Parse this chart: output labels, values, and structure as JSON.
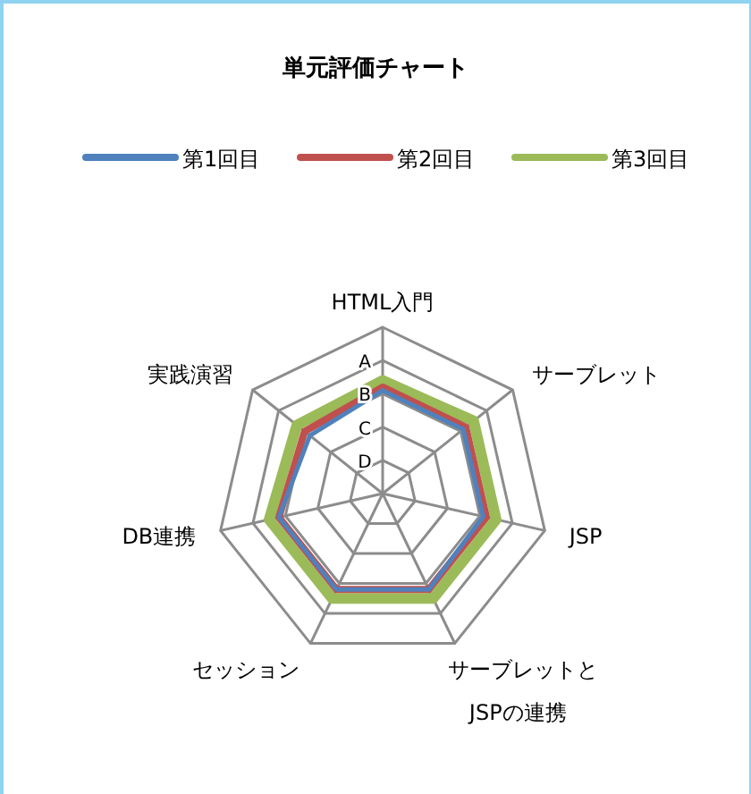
{
  "chart_data": {
    "type": "radar",
    "title": "単元評価チャート",
    "categories": [
      "HTML入門",
      "サーブレット",
      "JSP",
      "サーブレットとJSPの連携",
      "セッション",
      "DB連携",
      "実践演習"
    ],
    "series": [
      {
        "name": "第1回目",
        "color": "#4f81bd",
        "values": [
          3.1,
          3.1,
          3.1,
          3.2,
          3.2,
          3.2,
          2.8
        ]
      },
      {
        "name": "第2回目",
        "color": "#c0504d",
        "values": [
          3.2,
          3.2,
          3.2,
          3.2,
          3.2,
          3.2,
          3.0
        ]
      },
      {
        "name": "第3回目",
        "color": "#9bbb59",
        "values": [
          3.4,
          3.5,
          3.5,
          3.5,
          3.5,
          3.5,
          3.3
        ]
      }
    ],
    "ylim": [
      0,
      5
    ],
    "yticks": [
      {
        "value": 1,
        "label": "D"
      },
      {
        "value": 2,
        "label": "C"
      },
      {
        "value": 3,
        "label": "B"
      },
      {
        "value": 4,
        "label": "A"
      }
    ],
    "legend": "top",
    "grid": true
  }
}
